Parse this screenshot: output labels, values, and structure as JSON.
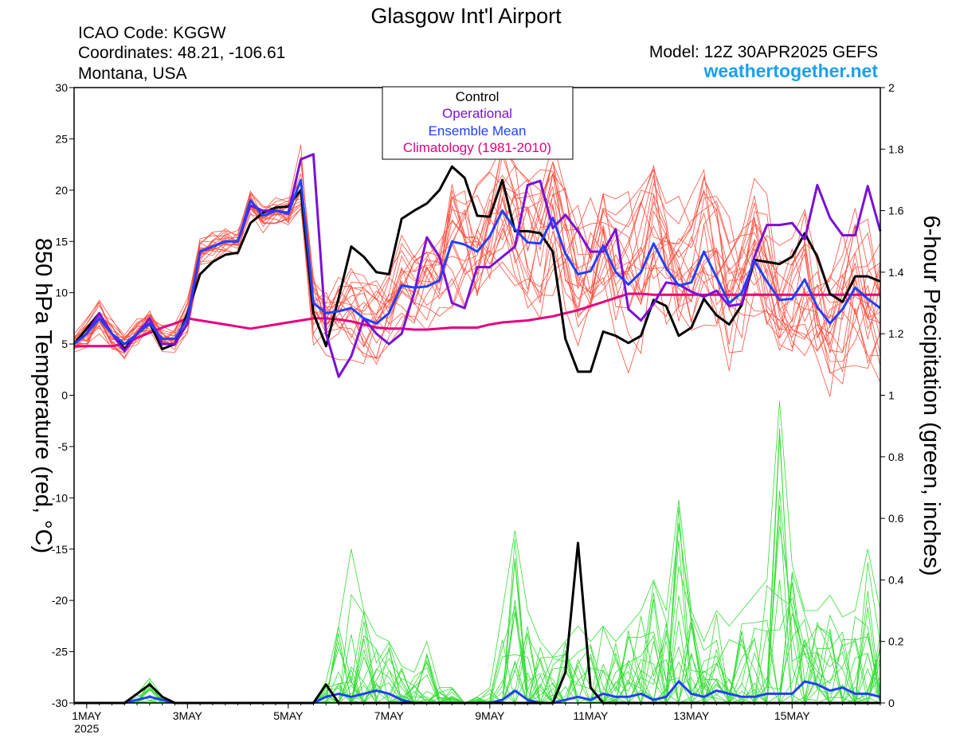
{
  "header": {
    "title": "Glasgow Int'l Airport",
    "icao": "ICAO Code: KGGW",
    "coords": "Coordinates: 48.21, -106.61",
    "region": "Montana, USA",
    "model": "Model: 12Z 30APR2025 GEFS",
    "site": "weathertogether.net"
  },
  "legend": {
    "control": "Control",
    "operational": "Operational",
    "mean": "Ensemble Mean",
    "climo": "Climatology (1981-2010)"
  },
  "axes": {
    "left_label": "850 hPa Temperature (red, °C)",
    "right_label": "6-hour Precipitation (green, inches)",
    "left_ticks": [
      "30",
      "25",
      "20",
      "15",
      "10",
      "5",
      "0",
      "-5",
      "-10",
      "-15",
      "-20",
      "-25",
      "-30"
    ],
    "right_ticks": [
      "2",
      "1.8",
      "1.6",
      "1.4",
      "1.2",
      "1",
      "0.8",
      "0.6",
      "0.4",
      "0.2",
      "0"
    ],
    "x_ticks": [
      "1MAY",
      "3MAY",
      "5MAY",
      "7MAY",
      "9MAY",
      "11MAY",
      "13MAY",
      "15MAY"
    ],
    "x_year": "2025"
  },
  "colors": {
    "control": "#000000",
    "operational": "#7a10d8",
    "mean": "#2040ff",
    "climo": "#e6007e",
    "members_temp": "#ff5040",
    "members_precip": "#33dd33",
    "site": "#1aa0f0"
  },
  "chart_data": {
    "type": "line",
    "title": "Glasgow Int'l Airport",
    "x_unit": "hours since 30APR2025 18Z (6-hourly steps)",
    "x_step_hours": 6,
    "xlim_steps": [
      0,
      64
    ],
    "y_left": {
      "label": "850 hPa Temperature (red, °C)",
      "range": [
        -30,
        30
      ]
    },
    "y_right": {
      "label": "6-hour Precipitation (green, inches)",
      "range": [
        0,
        2
      ]
    },
    "temperature": {
      "control": [
        5,
        6.5,
        8,
        6,
        4.5,
        6,
        7,
        4.5,
        5,
        8,
        11.8,
        13,
        13.7,
        13.9,
        16.8,
        17.8,
        18.3,
        18.4,
        20,
        8,
        4.8,
        9.5,
        14.5,
        13.5,
        12,
        11.8,
        17.2,
        18,
        18.7,
        20,
        22.3,
        21.2,
        17.5,
        17.4,
        21,
        16,
        16,
        15.8,
        14,
        5.5,
        2.3,
        2.3,
        6.2,
        5.8,
        5.1,
        5.8,
        9.3,
        8.7,
        5.8,
        6.6,
        9.4,
        7.8,
        6.9,
        8.8,
        13.2,
        13,
        12.8,
        13.5,
        15.8,
        13.5,
        9.9,
        9.1,
        11.6,
        11.6,
        11.1
      ],
      "operational": [
        5,
        6,
        8,
        6,
        4.3,
        6,
        7.5,
        5,
        5,
        7,
        14,
        14.5,
        15,
        15,
        18.5,
        18,
        18,
        17.8,
        23,
        23.5,
        6,
        1.8,
        3.8,
        7.5,
        6,
        5,
        6,
        10,
        15.4,
        13.5,
        9,
        8.5,
        12.5,
        12.5,
        13.5,
        14.5,
        20.5,
        20.9,
        16.3,
        17.6,
        16,
        14,
        14,
        16.2,
        8.4,
        7.3,
        8.9,
        11.0,
        10.8,
        10.1,
        9.6,
        10.2,
        8.7,
        8.9,
        13.5,
        16.6,
        16.6,
        16.8,
        15.2,
        20.5,
        17.3,
        15.6,
        15.6,
        20.4,
        16
      ],
      "mean": [
        5,
        6,
        7.5,
        6,
        5,
        6,
        7,
        5.5,
        5.5,
        7.5,
        14,
        14.5,
        15,
        15,
        19,
        17.5,
        18,
        17.7,
        21,
        9,
        8,
        8.2,
        8.5,
        7.5,
        7,
        8,
        10.7,
        10.5,
        10.6,
        11.2,
        15,
        14.7,
        14,
        15.5,
        18,
        16.2,
        14.9,
        14.8,
        17.3,
        13.8,
        11.8,
        12.1,
        14.6,
        12,
        10.8,
        12,
        14.8,
        12.4,
        10.7,
        11,
        14,
        11.5,
        9,
        10,
        13.1,
        11.1,
        9.3,
        9.4,
        11.3,
        8.6,
        7.0,
        8.4,
        10.5,
        9.4,
        8.5
      ],
      "climatology": [
        4.8,
        4.8,
        4.8,
        4.8,
        5,
        5.6,
        6.1,
        6.6,
        7,
        7.5,
        7.3,
        7.1,
        6.9,
        6.7,
        6.5,
        6.7,
        6.9,
        7.1,
        7.3,
        7.5,
        7.5,
        7.4,
        7.2,
        6.9,
        6.6,
        6.5,
        6.5,
        6.4,
        6.4,
        6.5,
        6.6,
        6.6,
        6.6,
        6.9,
        7.1,
        7.2,
        7.3,
        7.5,
        7.7,
        8,
        8.3,
        8.7,
        9.1,
        9.5,
        9.9,
        9.9,
        9.8,
        9.8,
        9.8,
        9.8,
        9.8,
        9.8,
        9.8,
        9.8,
        9.8,
        9.8,
        9.8,
        9.8,
        9.8,
        9.8,
        9.8,
        9.8,
        9.8,
        9.8,
        9.8
      ]
    },
    "precipitation": {
      "control": [
        0,
        0,
        0,
        0,
        0,
        0.03,
        0.06,
        0.02,
        0,
        0,
        0,
        0,
        0,
        0,
        0,
        0,
        0,
        0,
        0,
        0,
        0.06,
        0,
        0,
        0,
        0,
        0,
        0,
        0,
        0,
        0,
        0,
        0,
        0,
        0,
        0,
        0,
        0,
        0,
        0,
        0.1,
        0.52,
        0.05,
        0,
        0,
        0,
        0,
        0,
        0,
        0,
        0,
        0,
        0,
        0,
        0,
        0,
        0,
        0,
        0,
        0,
        0,
        0,
        0,
        0,
        0,
        0
      ],
      "mean": [
        0,
        0,
        0,
        0,
        0,
        0.01,
        0.02,
        0.01,
        0,
        0,
        0,
        0,
        0,
        0,
        0,
        0,
        0,
        0,
        0,
        0,
        0.02,
        0.03,
        0.02,
        0.03,
        0.04,
        0.03,
        0.01,
        0,
        0,
        0,
        0,
        0,
        0,
        0,
        0.01,
        0.04,
        0.01,
        0,
        0,
        0.01,
        0.02,
        0.01,
        0.03,
        0.02,
        0.02,
        0.03,
        0.01,
        0.02,
        0.07,
        0.03,
        0.02,
        0.04,
        0.03,
        0.02,
        0.02,
        0.03,
        0.03,
        0.03,
        0.07,
        0.06,
        0.04,
        0.05,
        0.03,
        0.03,
        0.02
      ],
      "members_max": [
        0,
        0,
        0,
        0,
        0,
        0.03,
        0.08,
        0.02,
        0,
        0,
        0,
        0,
        0,
        0,
        0,
        0,
        0,
        0,
        0,
        0,
        0.07,
        0.25,
        0.5,
        0.3,
        0.22,
        0.2,
        0.12,
        0.1,
        0.2,
        0.05,
        0.05,
        0,
        0.02,
        0.05,
        0.3,
        0.56,
        0.3,
        0.2,
        0.15,
        0.2,
        0.25,
        0.2,
        0.25,
        0.2,
        0.25,
        0.3,
        0.4,
        0.3,
        0.66,
        0.3,
        0.2,
        0.3,
        0.25,
        0.3,
        0.35,
        0.4,
        0.98,
        0.45,
        0.3,
        0.3,
        0.35,
        0.28,
        0.3,
        0.5,
        0.3
      ]
    },
    "x_tick_positions_steps": [
      1,
      9,
      17,
      25,
      33,
      41,
      49,
      57
    ]
  }
}
